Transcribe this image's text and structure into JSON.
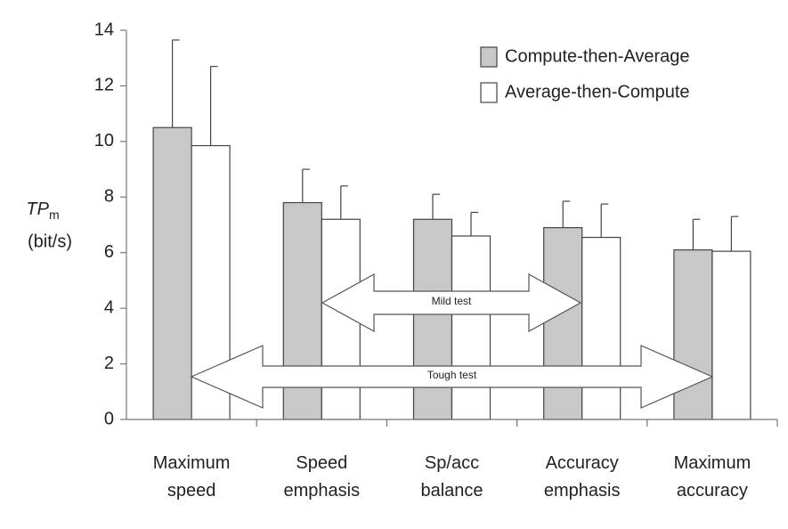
{
  "chart_data": {
    "type": "bar",
    "ylabel": {
      "main": "TP",
      "sub": "m",
      "unit": "(bit/s)"
    },
    "categories": [
      "Maximum speed",
      "Speed emphasis",
      "Sp/acc balance",
      "Accuracy emphasis",
      "Maximum accuracy"
    ],
    "series": [
      {
        "name": "Compute-then-Average",
        "color": "#c8c8c8",
        "values": [
          10.5,
          7.8,
          7.2,
          6.9,
          6.1
        ],
        "errors": [
          3.15,
          1.2,
          0.9,
          0.95,
          1.1
        ]
      },
      {
        "name": "Average-then-Compute",
        "color": "#ffffff",
        "values": [
          9.85,
          7.2,
          6.6,
          6.55,
          6.05
        ],
        "errors": [
          2.85,
          1.2,
          0.85,
          1.2,
          1.25
        ]
      }
    ],
    "annotations": [
      "Mild test",
      "Tough test"
    ],
    "ylim": [
      0,
      14
    ],
    "yticks": [
      0,
      2,
      4,
      6,
      8,
      10,
      12,
      14
    ],
    "grid": false,
    "legend": "upper right"
  }
}
